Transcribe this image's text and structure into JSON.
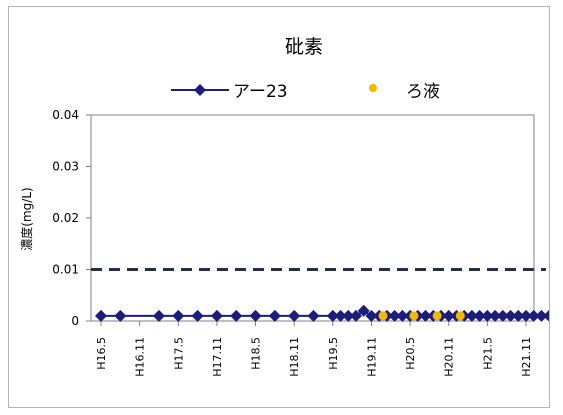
{
  "chart_data": {
    "type": "line",
    "title": "砒素",
    "ylabel": "濃度(mg/L)",
    "xlabel": "",
    "ylim": [
      0,
      0.04
    ],
    "yticks": [
      "0",
      "0.01",
      "0.02",
      "0.03",
      "0.04"
    ],
    "legend_position": "top",
    "categories": [
      "H16.5",
      "H16.11",
      "H17.5",
      "H17.11",
      "H18.5",
      "H18.11",
      "H19.5",
      "H19.11",
      "H20.5",
      "H20.11",
      "H21.5",
      "H21.11"
    ],
    "series": [
      {
        "name": "アー23",
        "style": "line-diamond",
        "color": "#1c1c7c",
        "points": [
          {
            "x": 0.0,
            "y": 0.001
          },
          {
            "x": 0.5,
            "y": 0.001
          },
          {
            "x": 1.5,
            "y": 0.001
          },
          {
            "x": 2.0,
            "y": 0.001
          },
          {
            "x": 2.5,
            "y": 0.001
          },
          {
            "x": 3.0,
            "y": 0.001
          },
          {
            "x": 3.5,
            "y": 0.001
          },
          {
            "x": 4.0,
            "y": 0.001
          },
          {
            "x": 4.5,
            "y": 0.001
          },
          {
            "x": 5.0,
            "y": 0.001
          },
          {
            "x": 5.5,
            "y": 0.001
          },
          {
            "x": 6.0,
            "y": 0.001
          },
          {
            "x": 6.2,
            "y": 0.001
          },
          {
            "x": 6.4,
            "y": 0.001
          },
          {
            "x": 6.6,
            "y": 0.001
          },
          {
            "x": 6.8,
            "y": 0.002
          },
          {
            "x": 7.0,
            "y": 0.001
          },
          {
            "x": 7.2,
            "y": 0.001
          },
          {
            "x": 7.4,
            "y": 0.001
          },
          {
            "x": 7.6,
            "y": 0.001
          },
          {
            "x": 7.8,
            "y": 0.001
          },
          {
            "x": 8.0,
            "y": 0.001
          },
          {
            "x": 8.2,
            "y": 0.001
          },
          {
            "x": 8.4,
            "y": 0.001
          },
          {
            "x": 8.6,
            "y": 0.001
          },
          {
            "x": 8.8,
            "y": 0.001
          },
          {
            "x": 9.0,
            "y": 0.001
          },
          {
            "x": 9.2,
            "y": 0.001
          },
          {
            "x": 9.4,
            "y": 0.001
          },
          {
            "x": 9.6,
            "y": 0.001
          },
          {
            "x": 9.8,
            "y": 0.001
          },
          {
            "x": 10.0,
            "y": 0.001
          },
          {
            "x": 10.2,
            "y": 0.001
          },
          {
            "x": 10.4,
            "y": 0.001
          },
          {
            "x": 10.6,
            "y": 0.001
          },
          {
            "x": 10.8,
            "y": 0.001
          },
          {
            "x": 11.0,
            "y": 0.001
          },
          {
            "x": 11.2,
            "y": 0.001
          },
          {
            "x": 11.4,
            "y": 0.001
          },
          {
            "x": 11.6,
            "y": 0.001
          }
        ]
      },
      {
        "name": "ろ液",
        "style": "marker-circle",
        "color": "#f5b800",
        "points": [
          {
            "x": 7.3,
            "y": 0.001
          },
          {
            "x": 8.1,
            "y": 0.001
          },
          {
            "x": 8.7,
            "y": 0.001
          },
          {
            "x": 9.3,
            "y": 0.001
          }
        ]
      }
    ],
    "reference_line": {
      "y": 0.01,
      "style": "dashed",
      "color": "#1f3050"
    },
    "grid": false
  }
}
